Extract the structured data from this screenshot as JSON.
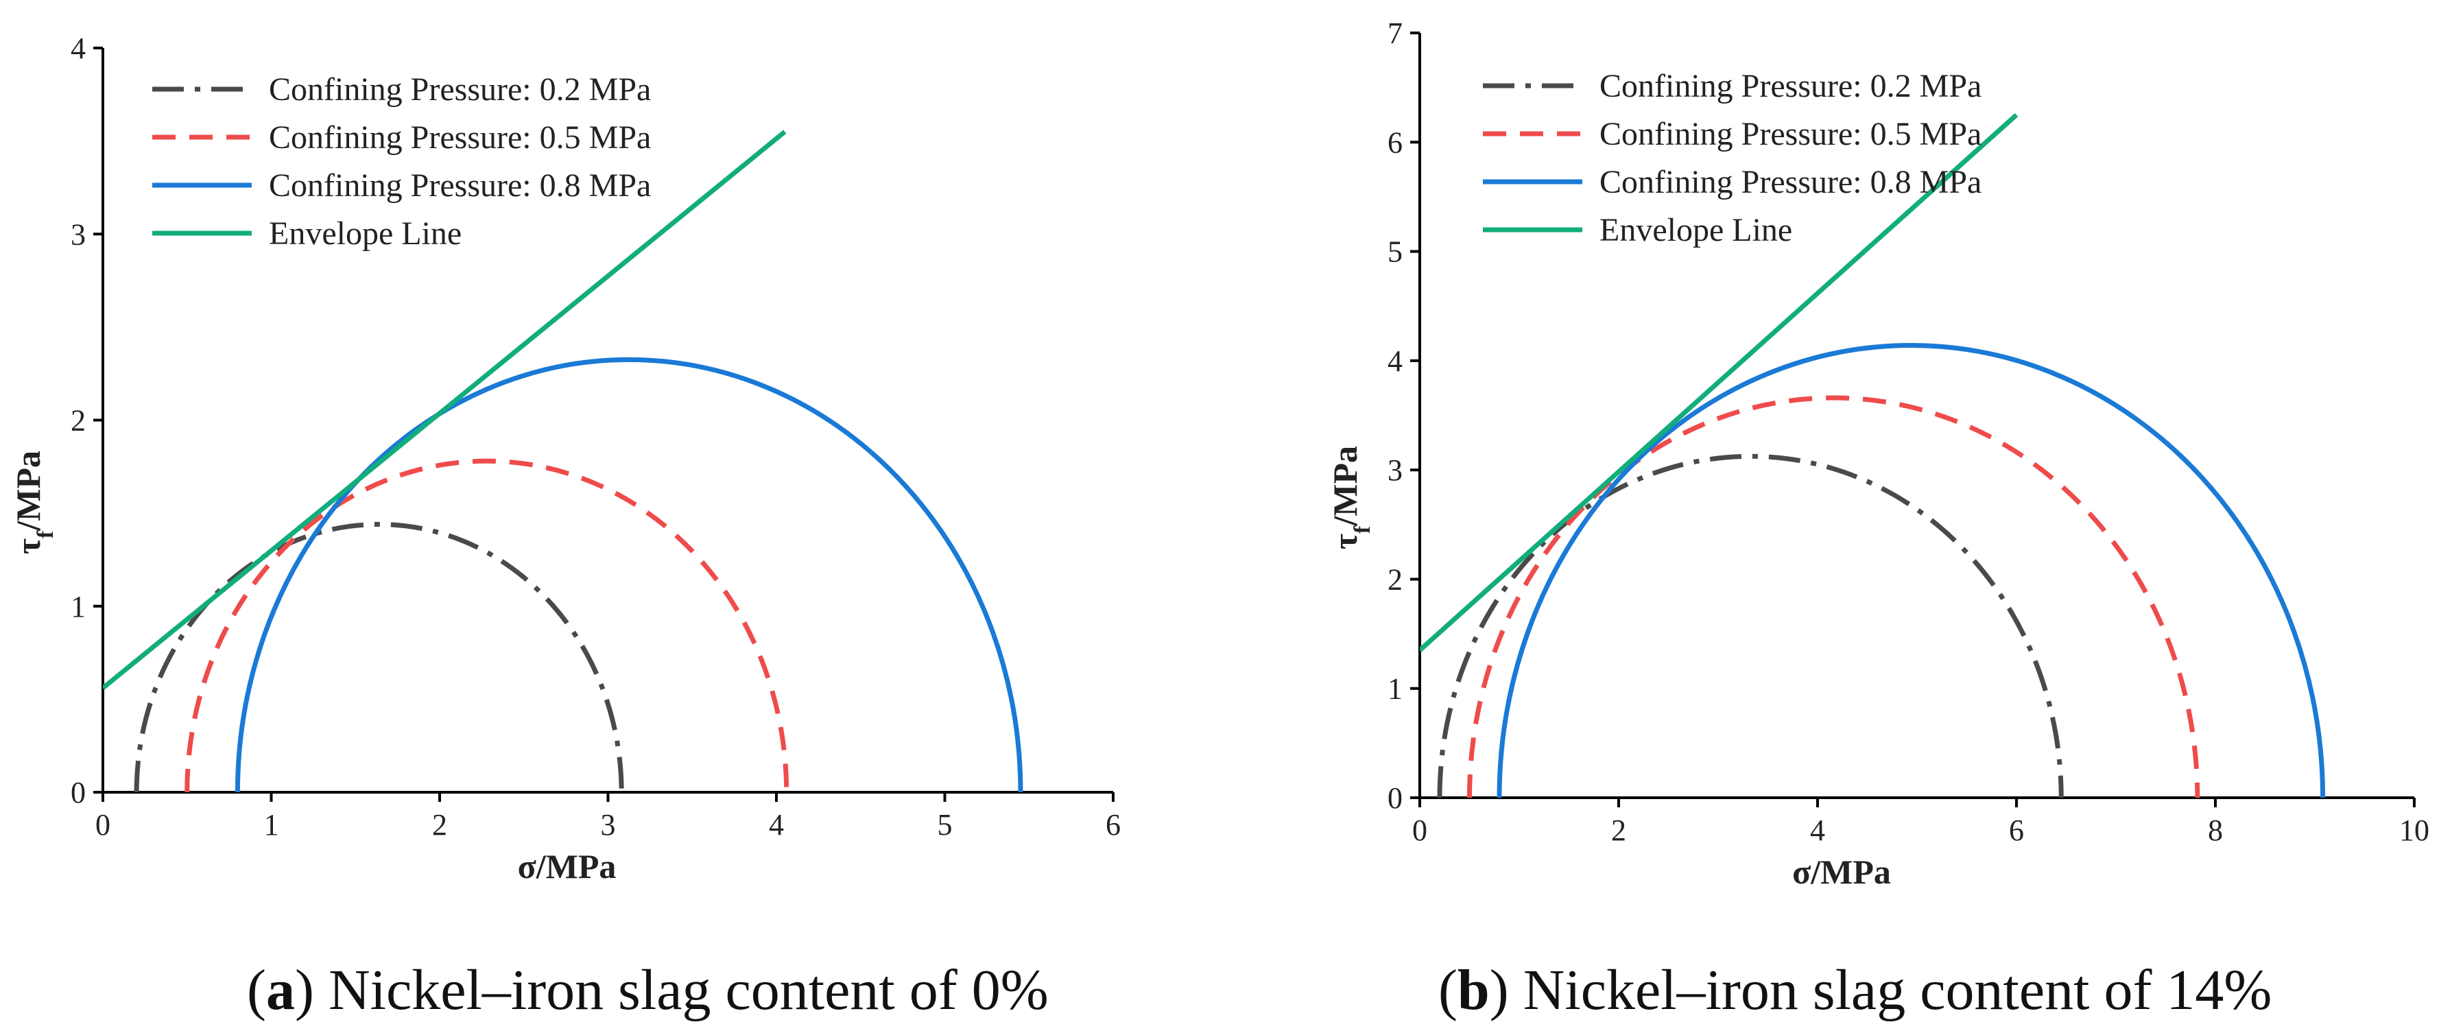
{
  "colors": {
    "series_02": "#4a4a4a",
    "series_05": "#ef4b4b",
    "series_08": "#1a7ad6",
    "envelope": "#12ad7c",
    "axis": "#000000"
  },
  "chart_data": [
    {
      "type": "line",
      "panel": "a",
      "title": "",
      "xlabel": "σ/MPa",
      "ylabel_main": "τ",
      "ylabel_sub": "f",
      "ylabel_rest": "/MPa",
      "xlim": [
        0,
        6
      ],
      "ylim": [
        0,
        4
      ],
      "xticks": [
        0,
        1,
        2,
        3,
        4,
        5,
        6
      ],
      "yticks": [
        0,
        1,
        2,
        3,
        4
      ],
      "legend_position": "top-left",
      "circles": [
        {
          "name": "Confining Pressure: 0.2 MPa",
          "sigma3": 0.2,
          "sigma1": 3.08,
          "style": "dashdot",
          "color_key": "series_02"
        },
        {
          "name": "Confining Pressure: 0.5 MPa",
          "sigma3": 0.5,
          "sigma1": 4.06,
          "style": "dash",
          "color_key": "series_05"
        },
        {
          "name": "Confining Pressure: 0.8 MPa",
          "sigma3": 0.8,
          "sigma1": 5.45,
          "style": "solid",
          "color_key": "series_08"
        }
      ],
      "envelope": {
        "name": "Envelope Line",
        "x": [
          0,
          4.05
        ],
        "y": [
          0.56,
          3.55
        ],
        "color_key": "envelope"
      },
      "caption_label": "a",
      "caption_text": "Nickel–iron slag content of 0%"
    },
    {
      "type": "line",
      "panel": "b",
      "title": "",
      "xlabel": "σ/MPa",
      "ylabel_main": "τ",
      "ylabel_sub": "f",
      "ylabel_rest": "/MPa",
      "xlim": [
        0,
        10
      ],
      "ylim": [
        0,
        7
      ],
      "xticks": [
        0,
        2,
        4,
        6,
        8,
        10
      ],
      "yticks": [
        0,
        1,
        2,
        3,
        4,
        5,
        6,
        7
      ],
      "legend_position": "top-left",
      "circles": [
        {
          "name": "Confining Pressure: 0.2 MPa",
          "sigma3": 0.2,
          "sigma1": 6.45,
          "style": "dashdot",
          "color_key": "series_02"
        },
        {
          "name": "Confining Pressure: 0.5 MPa",
          "sigma3": 0.5,
          "sigma1": 7.82,
          "style": "dash",
          "color_key": "series_05"
        },
        {
          "name": "Confining Pressure: 0.8 MPa",
          "sigma3": 0.8,
          "sigma1": 9.08,
          "style": "solid",
          "color_key": "series_08"
        }
      ],
      "envelope": {
        "name": "Envelope Line",
        "x": [
          0,
          6.0
        ],
        "y": [
          1.35,
          6.25
        ],
        "color_key": "envelope"
      },
      "caption_label": "b",
      "caption_text": "Nickel–iron slag content of 14%"
    }
  ]
}
